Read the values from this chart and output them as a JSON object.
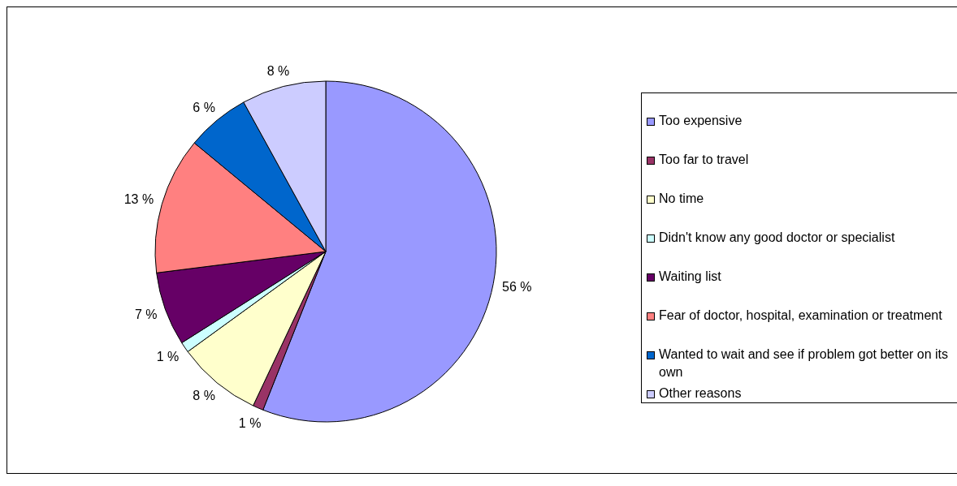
{
  "chart_data": {
    "type": "pie",
    "categories": [
      "Too expensive",
      "Too far to travel",
      "No time",
      "Didn't know any good doctor or specialist",
      "Waiting list",
      "Fear of doctor, hospital, examination or treatment",
      "Wanted to wait and see if problem got better on its own",
      "Other reasons"
    ],
    "values": [
      56,
      1,
      8,
      1,
      7,
      13,
      6,
      8
    ],
    "colors": [
      "#9999ff",
      "#993366",
      "#ffffcc",
      "#ccffff",
      "#660066",
      "#ff8080",
      "#0066cc",
      "#ccccff"
    ],
    "value_labels": [
      "56 %",
      "1 %",
      "8 %",
      "1 %",
      "7 %",
      "13 %",
      "6 %",
      "8 %"
    ],
    "legend": "right"
  }
}
